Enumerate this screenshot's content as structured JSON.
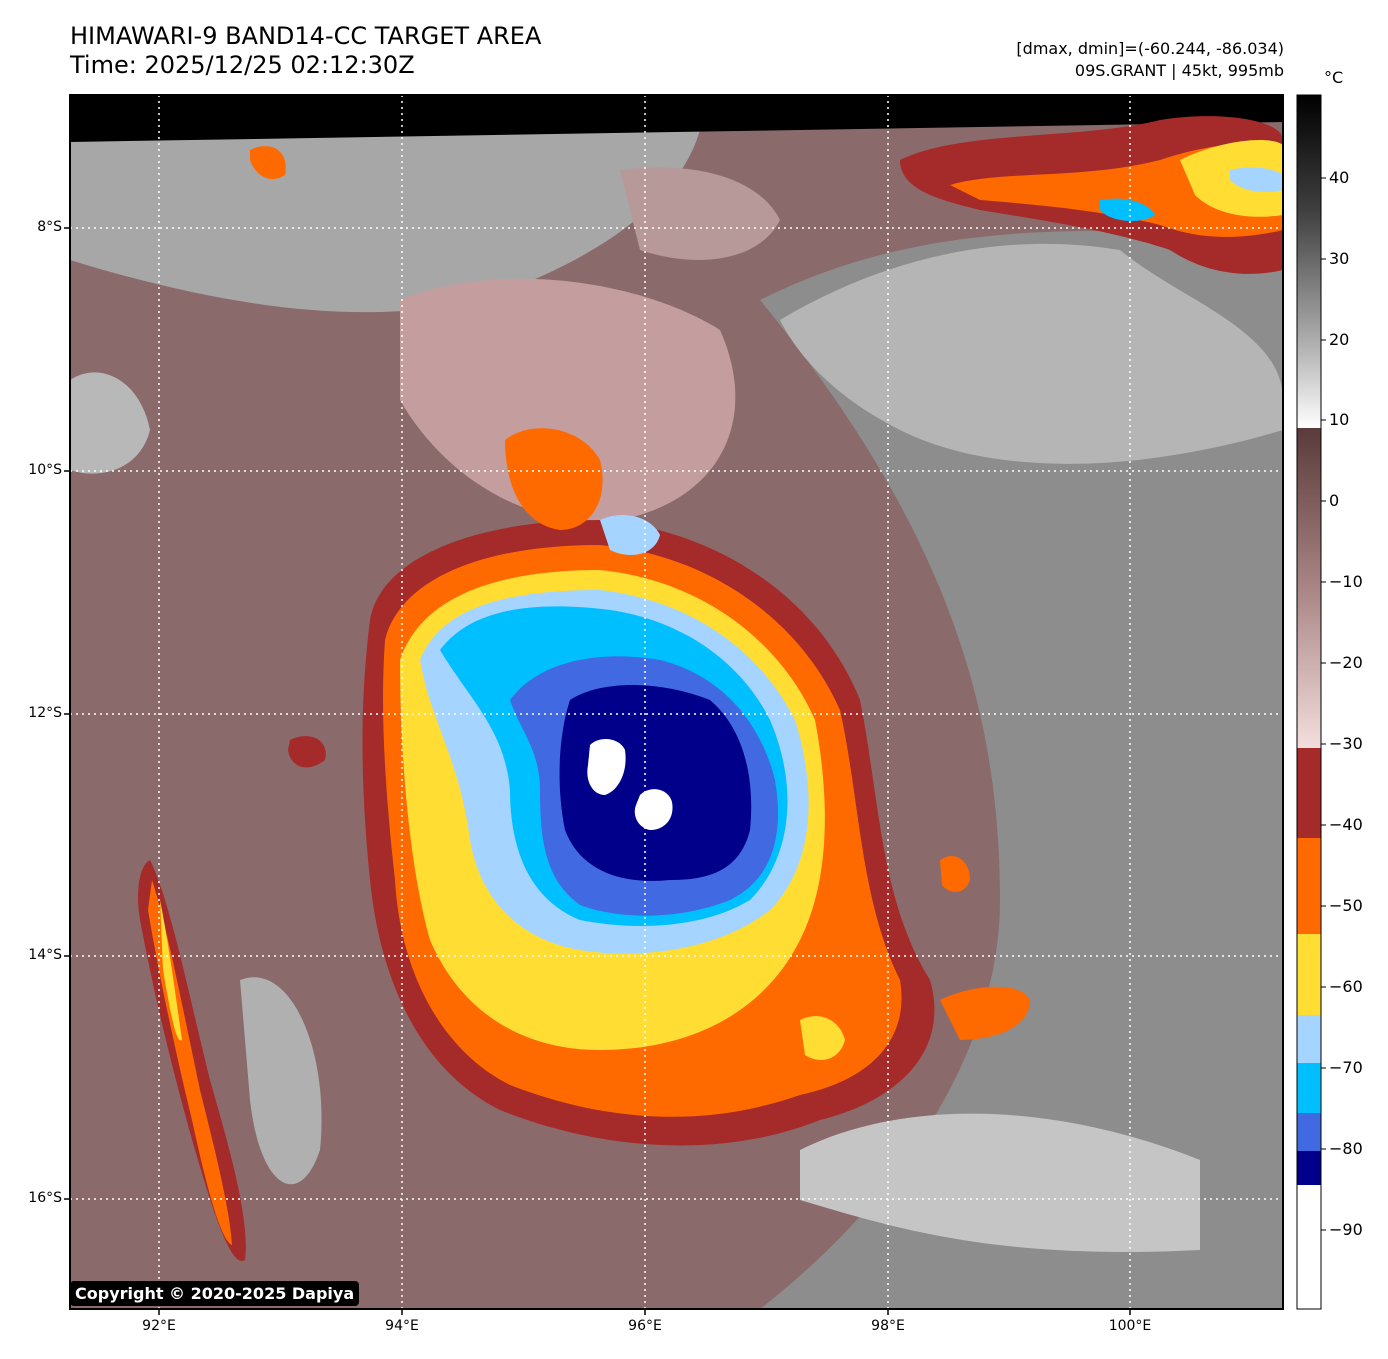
{
  "title": {
    "line1": "HIMAWARI-9 BAND14-CC TARGET AREA",
    "line2": "Time: 2025/12/25 02:12:30Z"
  },
  "info": {
    "line1": "[dmax, dmin]=(-60.244, -86.034)",
    "line2": "09S.GRANT | 45kt, 995mb"
  },
  "colorbar": {
    "unit": "°C",
    "ticks": [
      "40",
      "30",
      "20",
      "10",
      "0",
      "−10",
      "−20",
      "−30",
      "−40",
      "−50",
      "−60",
      "−70",
      "−80",
      "−90"
    ]
  },
  "axes": {
    "lat_labels": [
      "8°S",
      "10°S",
      "12°S",
      "14°S",
      "16°S"
    ],
    "lon_labels": [
      "92°E",
      "94°E",
      "96°E",
      "98°E",
      "100°E"
    ]
  },
  "copyright": "Copyright © 2020-2025 Dapiya",
  "colors": {
    "white": "#ffffff",
    "dark_blue": "#00008b",
    "royal_blue": "#4169e1",
    "deep_sky_blue": "#00bfff",
    "light_blue": "#a4d4ff",
    "yellow": "#ffdd33",
    "orange": "#ff6a00",
    "brick_red": "#a52a2a",
    "pink_brown": "#d8b8b8",
    "gray": "#909090"
  }
}
